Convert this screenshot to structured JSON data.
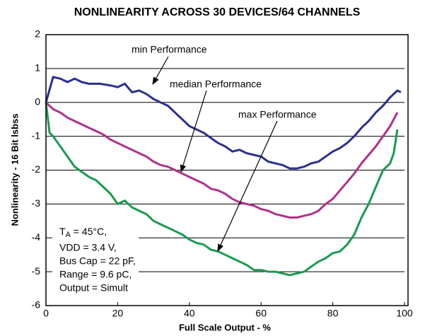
{
  "chart_data": {
    "type": "line",
    "title": "NONLINEARITY ACROSS 30 DEVICES/64 CHANNELS",
    "xlabel": "Full Scale Output - %",
    "ylabel": "Nonlinearity - 16 Bit lsbss",
    "xlim": [
      0,
      100
    ],
    "ylim": [
      -6,
      2
    ],
    "xticks": [
      0,
      20,
      40,
      60,
      80,
      100
    ],
    "yticks": [
      -6,
      -5,
      -4,
      -3,
      -2,
      -1,
      0,
      1,
      2
    ],
    "grid": true,
    "series": [
      {
        "name": "min Performance",
        "color": "#2b2f8f",
        "x": [
          0,
          2,
          4,
          6,
          8,
          10,
          12,
          15,
          18,
          20,
          22,
          24,
          26,
          28,
          30,
          32,
          34,
          36,
          38,
          40,
          42,
          44,
          46,
          48,
          50,
          52,
          54,
          56,
          58,
          60,
          62,
          64,
          66,
          68,
          70,
          72,
          74,
          76,
          78,
          80,
          82,
          84,
          86,
          88,
          90,
          92,
          94,
          96,
          98,
          99
        ],
        "values": [
          0,
          0.75,
          0.7,
          0.6,
          0.7,
          0.6,
          0.55,
          0.55,
          0.5,
          0.45,
          0.55,
          0.3,
          0.35,
          0.25,
          0.1,
          0,
          -0.1,
          -0.3,
          -0.5,
          -0.7,
          -0.8,
          -0.9,
          -1.05,
          -1.2,
          -1.3,
          -1.45,
          -1.4,
          -1.5,
          -1.55,
          -1.6,
          -1.75,
          -1.8,
          -1.85,
          -1.95,
          -1.95,
          -1.9,
          -1.8,
          -1.75,
          -1.6,
          -1.45,
          -1.35,
          -1.2,
          -1,
          -0.75,
          -0.55,
          -0.3,
          -0.1,
          0.15,
          0.35,
          0.3
        ]
      },
      {
        "name": "median Performance",
        "color": "#b0308a",
        "x": [
          0,
          2,
          4,
          6,
          8,
          10,
          12,
          14,
          16,
          18,
          20,
          22,
          24,
          26,
          28,
          30,
          32,
          34,
          36,
          38,
          40,
          42,
          44,
          46,
          48,
          50,
          52,
          54,
          56,
          58,
          60,
          62,
          64,
          66,
          68,
          70,
          72,
          74,
          76,
          78,
          80,
          82,
          84,
          86,
          88,
          90,
          92,
          94,
          96,
          98
        ],
        "values": [
          0,
          -0.2,
          -0.3,
          -0.45,
          -0.55,
          -0.65,
          -0.75,
          -0.85,
          -0.95,
          -1.1,
          -1.2,
          -1.3,
          -1.4,
          -1.5,
          -1.6,
          -1.75,
          -1.85,
          -1.9,
          -2,
          -2.1,
          -2.2,
          -2.3,
          -2.4,
          -2.55,
          -2.6,
          -2.7,
          -2.85,
          -2.95,
          -3,
          -3.05,
          -3.15,
          -3.2,
          -3.3,
          -3.35,
          -3.4,
          -3.4,
          -3.35,
          -3.3,
          -3.2,
          -3,
          -2.85,
          -2.6,
          -2.35,
          -2.1,
          -1.8,
          -1.55,
          -1.3,
          -1,
          -0.7,
          -0.3
        ]
      },
      {
        "name": "max Performance",
        "color": "#1a9a50",
        "x": [
          0,
          1,
          2,
          4,
          6,
          8,
          10,
          12,
          14,
          16,
          18,
          20,
          22,
          24,
          26,
          28,
          30,
          32,
          34,
          36,
          38,
          40,
          42,
          44,
          46,
          48,
          50,
          52,
          54,
          56,
          58,
          60,
          62,
          64,
          66,
          68,
          70,
          72,
          74,
          76,
          78,
          80,
          82,
          84,
          86,
          88,
          90,
          92,
          94,
          96,
          97,
          98
        ],
        "values": [
          0,
          -0.9,
          -1,
          -1.3,
          -1.6,
          -1.9,
          -2.05,
          -2.2,
          -2.3,
          -2.5,
          -2.7,
          -3,
          -2.9,
          -3.1,
          -3.2,
          -3.3,
          -3.5,
          -3.6,
          -3.7,
          -3.8,
          -3.9,
          -4.05,
          -4.15,
          -4.2,
          -4.35,
          -4.4,
          -4.5,
          -4.6,
          -4.7,
          -4.8,
          -4.95,
          -4.95,
          -5,
          -5,
          -5.05,
          -5.1,
          -5.05,
          -5,
          -4.85,
          -4.7,
          -4.6,
          -4.45,
          -4.4,
          -4.2,
          -3.9,
          -3.4,
          -3,
          -2.5,
          -2,
          -1.8,
          -1.5,
          -0.8
        ]
      }
    ],
    "conditions": {
      "first": {
        "symbol": "T",
        "subscript": "A",
        "text": " = 45°C,"
      },
      "lines": [
        "VDD = 3.4 V,",
        "Bus Cap = 22 pF,",
        "Range = 9.6 pC,",
        "Output = Simult"
      ]
    }
  }
}
